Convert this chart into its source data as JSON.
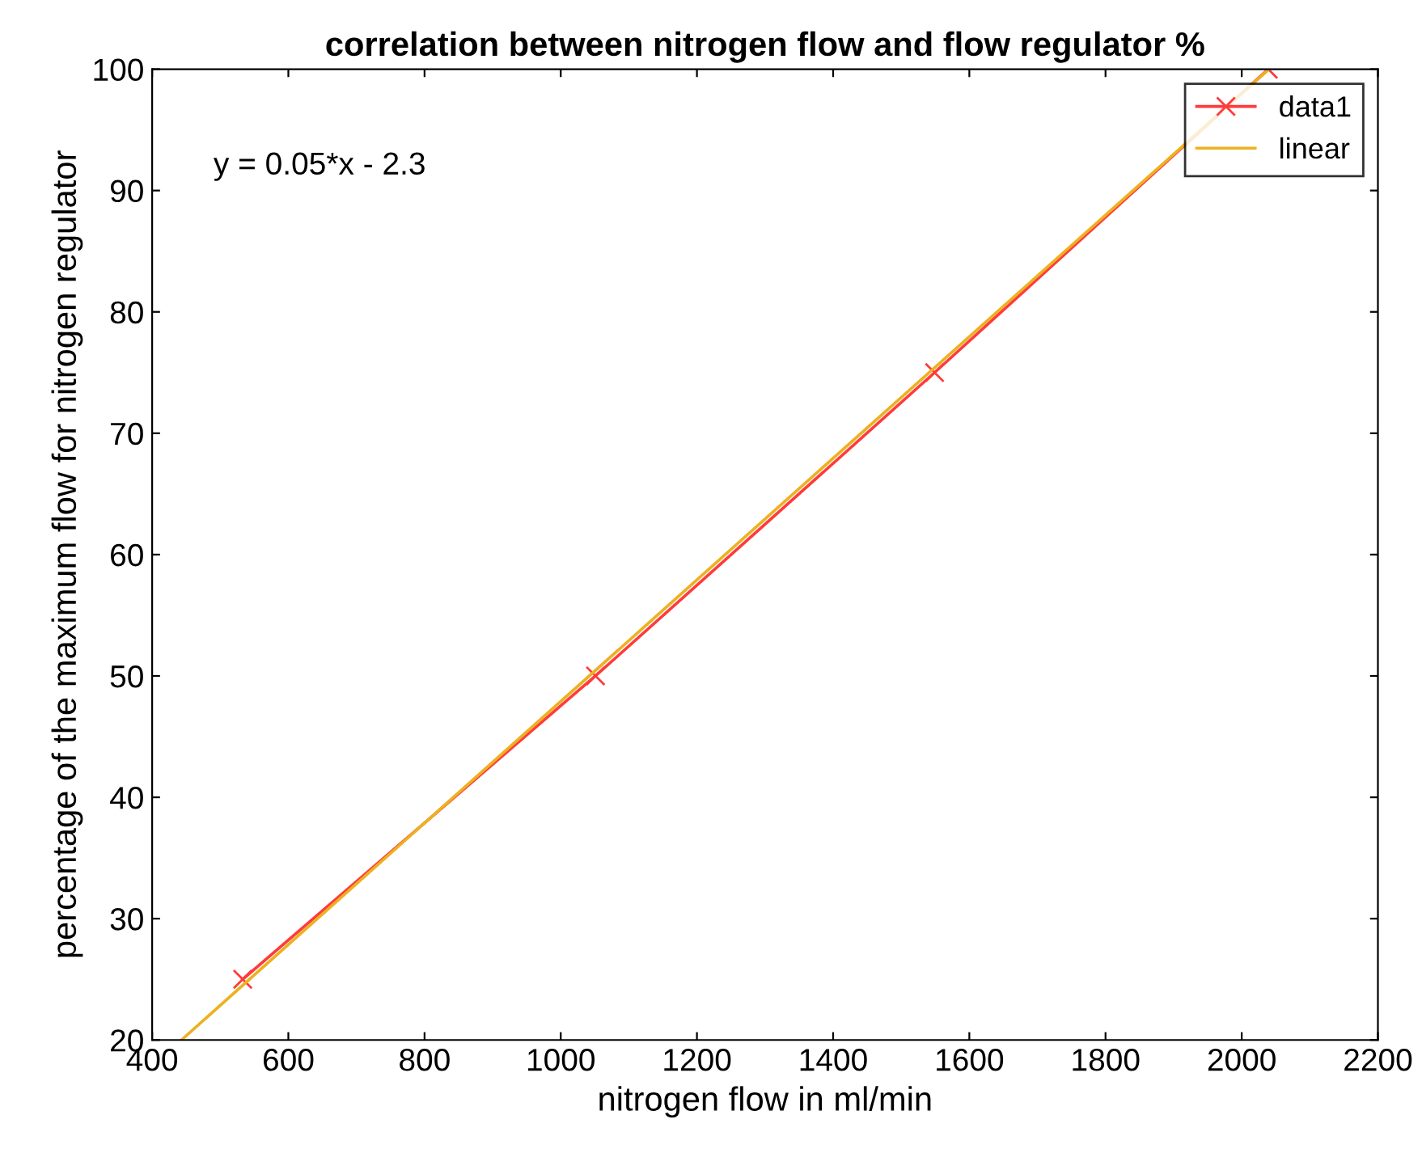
{
  "chart_data": {
    "type": "line",
    "title": "correlation between nitrogen flow and flow regulator %",
    "xlabel": "nitrogen flow in ml/min",
    "ylabel": "percentage of the maximum flow for nitrogen regulator",
    "series": [
      {
        "name": "data1",
        "color": "#ff3b3b",
        "x": [
          533,
          1051,
          1549,
          2039
        ],
        "values": [
          25,
          50,
          75,
          100
        ],
        "marker": "cross"
      },
      {
        "name": "linear",
        "color": "#edb120",
        "x": [
          443,
          2040
        ],
        "values": [
          20,
          100
        ],
        "marker": "none"
      }
    ],
    "annotations": [
      "y = 0.05*x - 2.3"
    ],
    "xlim": [
      400,
      2200
    ],
    "xticks": [
      400,
      600,
      800,
      1000,
      1200,
      1400,
      1600,
      1800,
      2000,
      2200
    ],
    "ylim": [
      20,
      100
    ],
    "yticks": [
      20,
      30,
      40,
      50,
      60,
      70,
      80,
      90,
      100
    ],
    "grid": false,
    "legend": "top right",
    "line_style": "solid"
  }
}
